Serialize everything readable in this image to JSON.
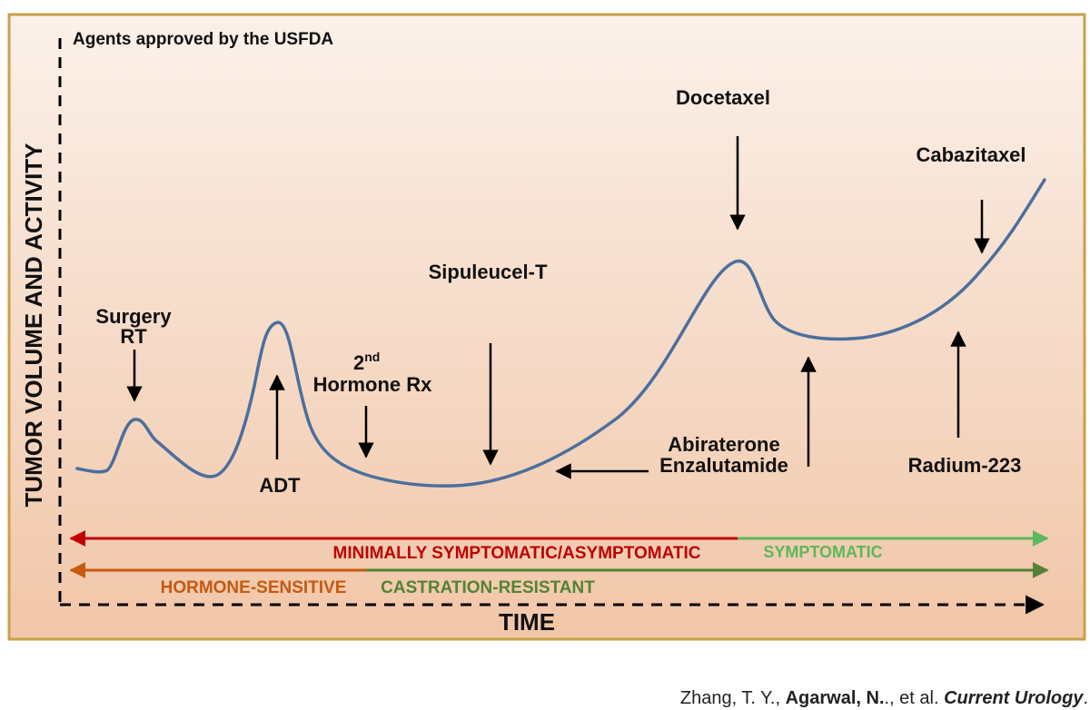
{
  "header_note": "Agents approved by the USFDA",
  "y_axis_label": "TUMOR VOLUME AND ACTIVITY",
  "x_axis_label": "TIME",
  "labels": {
    "surgery_line1": "Surgery",
    "surgery_line2": "RT",
    "adt": "ADT",
    "hormone_2nd_base": "2",
    "hormone_2nd_sup": "nd",
    "hormone_rx": "Hormone Rx",
    "sipuleucel": "Sipuleucel-T",
    "docetaxel": "Docetaxel",
    "abiraterone": "Abiraterone",
    "enzalutamide": "Enzalutamide",
    "cabazitaxel": "Cabazitaxel",
    "radium": "Radium-223"
  },
  "phases": {
    "minimally_symptomatic": "MINIMALLY SYMPTOMATIC/ASYMPTOMATIC",
    "symptomatic": "SYMPTOMATIC",
    "hormone_sensitive": "HORMONE-SENSITIVE",
    "castration_resistant": "CASTRATION-RESISTANT"
  },
  "citation": {
    "authors_plain": "Zhang, T. Y., ",
    "author_bold": "Agarwal, N.",
    "rest": "., et al. ",
    "journal": "Current Urology",
    "tail": "."
  },
  "colors": {
    "frame_border": "#c8a14a",
    "curve": "#4a6f9e",
    "red_line": "#c00000",
    "green_line": "#5cb85c",
    "orange_line": "#c55a11",
    "darkgreen_line": "#548235"
  }
}
